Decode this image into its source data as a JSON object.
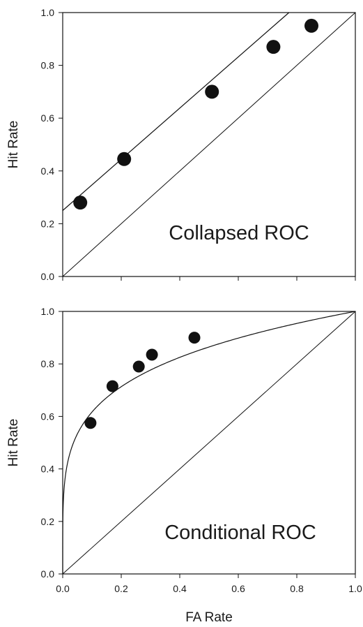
{
  "chart_data": [
    {
      "type": "scatter",
      "annotation": "Collapsed ROC",
      "xlabel": "",
      "ylabel": "Hit Rate",
      "xlim": [
        0,
        1
      ],
      "ylim": [
        0,
        1
      ],
      "x_ticks": [
        "0.0",
        "0.2",
        "0.4",
        "0.6",
        "0.8",
        "1.0"
      ],
      "x_tick_labels_shown": false,
      "y_ticks": [
        "0.0",
        "0.2",
        "0.4",
        "0.6",
        "0.8",
        "1.0"
      ],
      "grid": false,
      "points": {
        "x": [
          0.06,
          0.21,
          0.51,
          0.72,
          0.85
        ],
        "y": [
          0.28,
          0.445,
          0.7,
          0.87,
          0.95
        ]
      },
      "fit_line": {
        "kind": "linear",
        "intercept": 0.25,
        "slope": 0.97
      },
      "chance_line": true,
      "colors": {
        "points": "#111111",
        "lines": "#111111"
      }
    },
    {
      "type": "scatter",
      "annotation": "Conditional ROC",
      "xlabel": "FA Rate",
      "ylabel": "Hit Rate",
      "xlim": [
        0,
        1
      ],
      "ylim": [
        0,
        1
      ],
      "x_ticks": [
        "0.0",
        "0.2",
        "0.4",
        "0.6",
        "0.8",
        "1.0"
      ],
      "x_tick_labels_shown": true,
      "y_ticks": [
        "0.0",
        "0.2",
        "0.4",
        "0.6",
        "0.8",
        "1.0"
      ],
      "grid": false,
      "points": {
        "x": [
          0.095,
          0.17,
          0.26,
          0.305,
          0.45
        ],
        "y": [
          0.575,
          0.715,
          0.79,
          0.835,
          0.9
        ]
      },
      "fit_line": {
        "kind": "curve",
        "exponent": 0.21
      },
      "chance_line": true,
      "colors": {
        "points": "#111111",
        "lines": "#111111"
      }
    }
  ]
}
